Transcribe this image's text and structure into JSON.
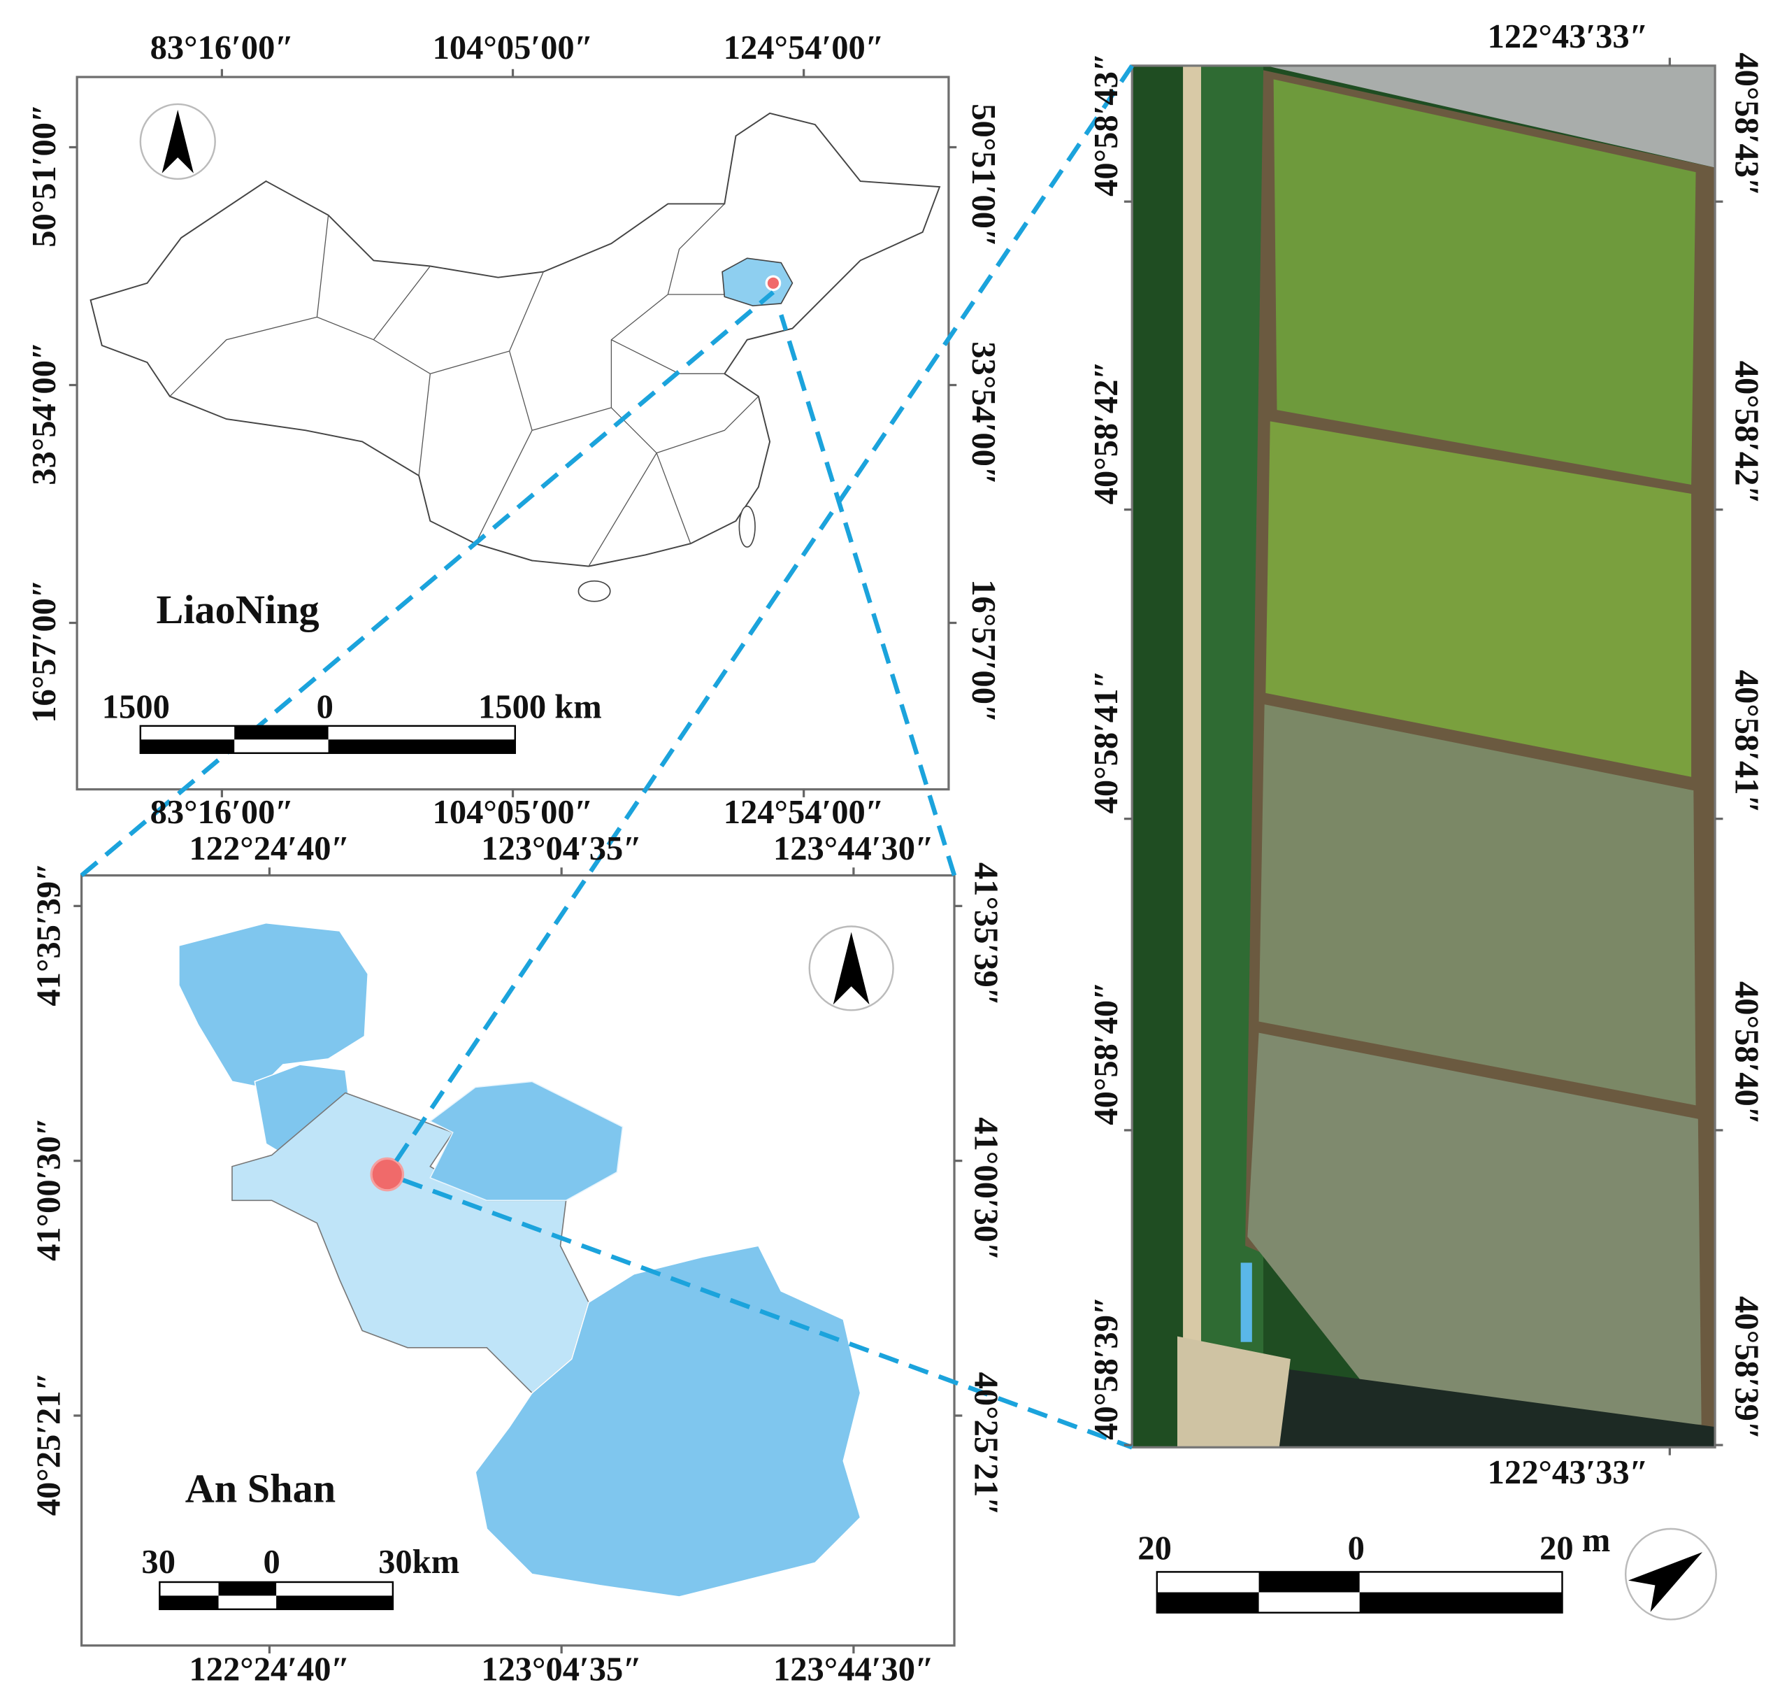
{
  "panels": [
    {
      "x_labels": [
        "83°16′00″",
        "104°05′00″",
        "124°54′00″"
      ],
      "y_labels": [
        "50°51′00″",
        "33°54′00″",
        "16°57′00″"
      ],
      "place": "LiaoNing",
      "scale": [
        "1500",
        "0",
        "1500 km"
      ]
    },
    {
      "x_labels": [
        "122°24′40″",
        "123°04′35″",
        "123°44′30″"
      ],
      "y_labels": [
        "41°35′39″",
        "41°00′30″",
        "40°25′21″"
      ],
      "place": "An Shan",
      "scale": [
        "30",
        "0",
        "30km"
      ]
    },
    {
      "x_labels": [
        "122°43′33″"
      ],
      "y_labels": [
        "40°58′43″",
        "40°58′42″",
        "40°58′41″",
        "40°58′40″",
        "40°58′39″"
      ],
      "scale": [
        "20",
        "0",
        "20",
        "m"
      ]
    }
  ]
}
